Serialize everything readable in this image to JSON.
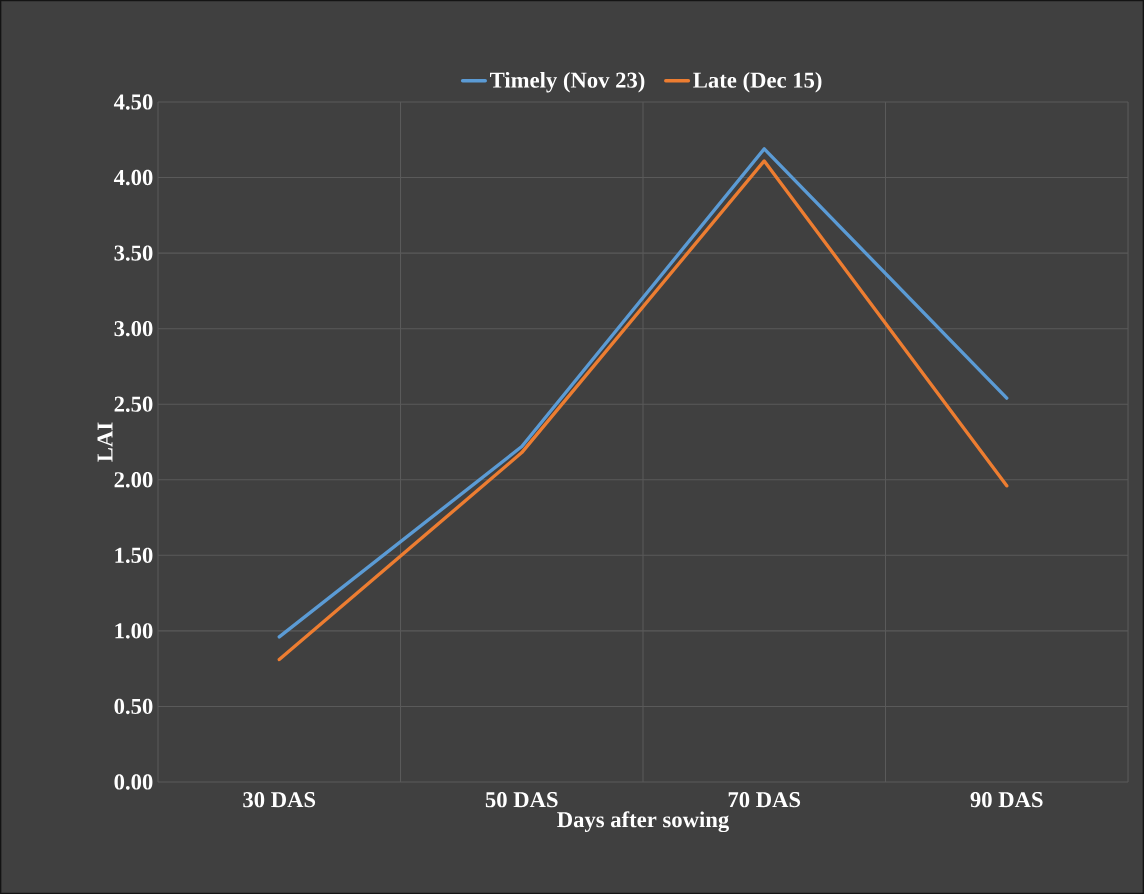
{
  "chart_data": {
    "type": "line",
    "xlabel": "Days after sowing",
    "ylabel": "LAI",
    "categories": [
      "30 DAS",
      "50 DAS",
      "70 DAS",
      "90 DAS"
    ],
    "series": [
      {
        "name": "Timely (Nov 23)",
        "color": "#5b9bd5",
        "values": [
          0.96,
          2.22,
          4.19,
          2.54
        ]
      },
      {
        "name": "Late (Dec 15)",
        "color": "#ed7d31",
        "values": [
          0.81,
          2.18,
          4.11,
          1.96
        ]
      }
    ],
    "ylim": [
      0,
      4.5
    ],
    "yticks": [
      {
        "value": 0,
        "label": "0.00"
      },
      {
        "value": 0.5,
        "label": "0.50"
      },
      {
        "value": 1,
        "label": "1.00"
      },
      {
        "value": 1.5,
        "label": "1.50"
      },
      {
        "value": 2,
        "label": "2.00"
      },
      {
        "value": 2.5,
        "label": "2.50"
      },
      {
        "value": 3,
        "label": "3.00"
      },
      {
        "value": 3.5,
        "label": "3.50"
      },
      {
        "value": 4,
        "label": "4.00"
      },
      {
        "value": 4.5,
        "label": "4.50"
      }
    ],
    "grid": true,
    "legend": "top",
    "marker": "none",
    "line_style": "solid"
  }
}
